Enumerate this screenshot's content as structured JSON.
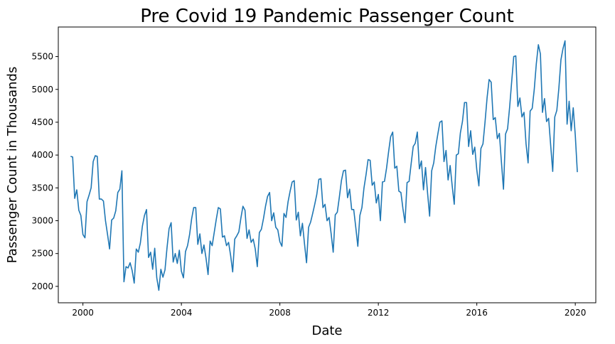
{
  "chart_data": {
    "type": "line",
    "title": "Pre Covid 19 Pandemic Passenger Count",
    "xlabel": "Date",
    "ylabel": "Passenger Count in Thousands",
    "x_start": "1999-07",
    "x_ticks": [
      "2000",
      "2004",
      "2008",
      "2012",
      "2016",
      "2020"
    ],
    "y_ticks": [
      "2000",
      "2500",
      "3000",
      "3500",
      "4000",
      "4500",
      "5000",
      "5500"
    ],
    "xlim": [
      "1999-01",
      "2020-11"
    ],
    "ylim": [
      1750,
      5950
    ],
    "grid": false,
    "color": "#1f77b4",
    "series": [
      {
        "values": [
          3980,
          3970,
          3340,
          3470,
          3160,
          3080,
          2790,
          2740,
          3290,
          3390,
          3500,
          3900,
          3990,
          3980,
          3330,
          3330,
          3300,
          3000,
          2790,
          2570,
          3010,
          3040,
          3150,
          3430,
          3480,
          3760,
          2070,
          2300,
          2280,
          2360,
          2240,
          2050,
          2570,
          2520,
          2660,
          2920,
          3080,
          3170,
          2440,
          2520,
          2260,
          2580,
          2130,
          1940,
          2260,
          2140,
          2250,
          2590,
          2880,
          2970,
          2370,
          2500,
          2350,
          2550,
          2230,
          2130,
          2530,
          2620,
          2790,
          3030,
          3200,
          3200,
          2640,
          2800,
          2500,
          2630,
          2430,
          2180,
          2690,
          2620,
          2820,
          3020,
          3200,
          3180,
          2750,
          2770,
          2620,
          2670,
          2470,
          2220,
          2720,
          2770,
          2830,
          3040,
          3220,
          3160,
          2730,
          2860,
          2670,
          2720,
          2570,
          2300,
          2820,
          2870,
          3030,
          3220,
          3370,
          3430,
          3000,
          3120,
          2900,
          2860,
          2680,
          2610,
          3110,
          3050,
          3290,
          3450,
          3590,
          3610,
          3010,
          3130,
          2770,
          2960,
          2650,
          2360,
          2900,
          2980,
          3110,
          3250,
          3400,
          3630,
          3640,
          3200,
          3250,
          3000,
          3050,
          2800,
          2520,
          3090,
          3130,
          3360,
          3610,
          3760,
          3770,
          3350,
          3480,
          3170,
          3170,
          2900,
          2610,
          3080,
          3200,
          3500,
          3700,
          3930,
          3920,
          3540,
          3590,
          3270,
          3400,
          3000,
          3590,
          3600,
          3800,
          4050,
          4280,
          4350,
          3800,
          3830,
          3450,
          3430,
          3180,
          2970,
          3580,
          3600,
          3870,
          4130,
          4180,
          4350,
          3790,
          3910,
          3470,
          3810,
          3420,
          3070,
          3760,
          3880,
          4130,
          4320,
          4500,
          4520,
          3900,
          4070,
          3620,
          3840,
          3530,
          3250,
          4000,
          4020,
          4340,
          4510,
          4800,
          4800,
          4130,
          4370,
          4010,
          4120,
          3770,
          3530,
          4100,
          4170,
          4500,
          4870,
          5150,
          5110,
          4540,
          4570,
          4250,
          4330,
          3890,
          3480,
          4320,
          4400,
          4730,
          5120,
          5500,
          5510,
          4740,
          4870,
          4580,
          4650,
          4170,
          3880,
          4670,
          4710,
          5000,
          5390,
          5680,
          5540,
          4650,
          4860,
          4510,
          4560,
          4150,
          3750,
          4580,
          4680,
          5020,
          5450,
          5620,
          5740,
          4470,
          4820,
          4370,
          4720,
          4300,
          3740
        ]
      }
    ]
  }
}
